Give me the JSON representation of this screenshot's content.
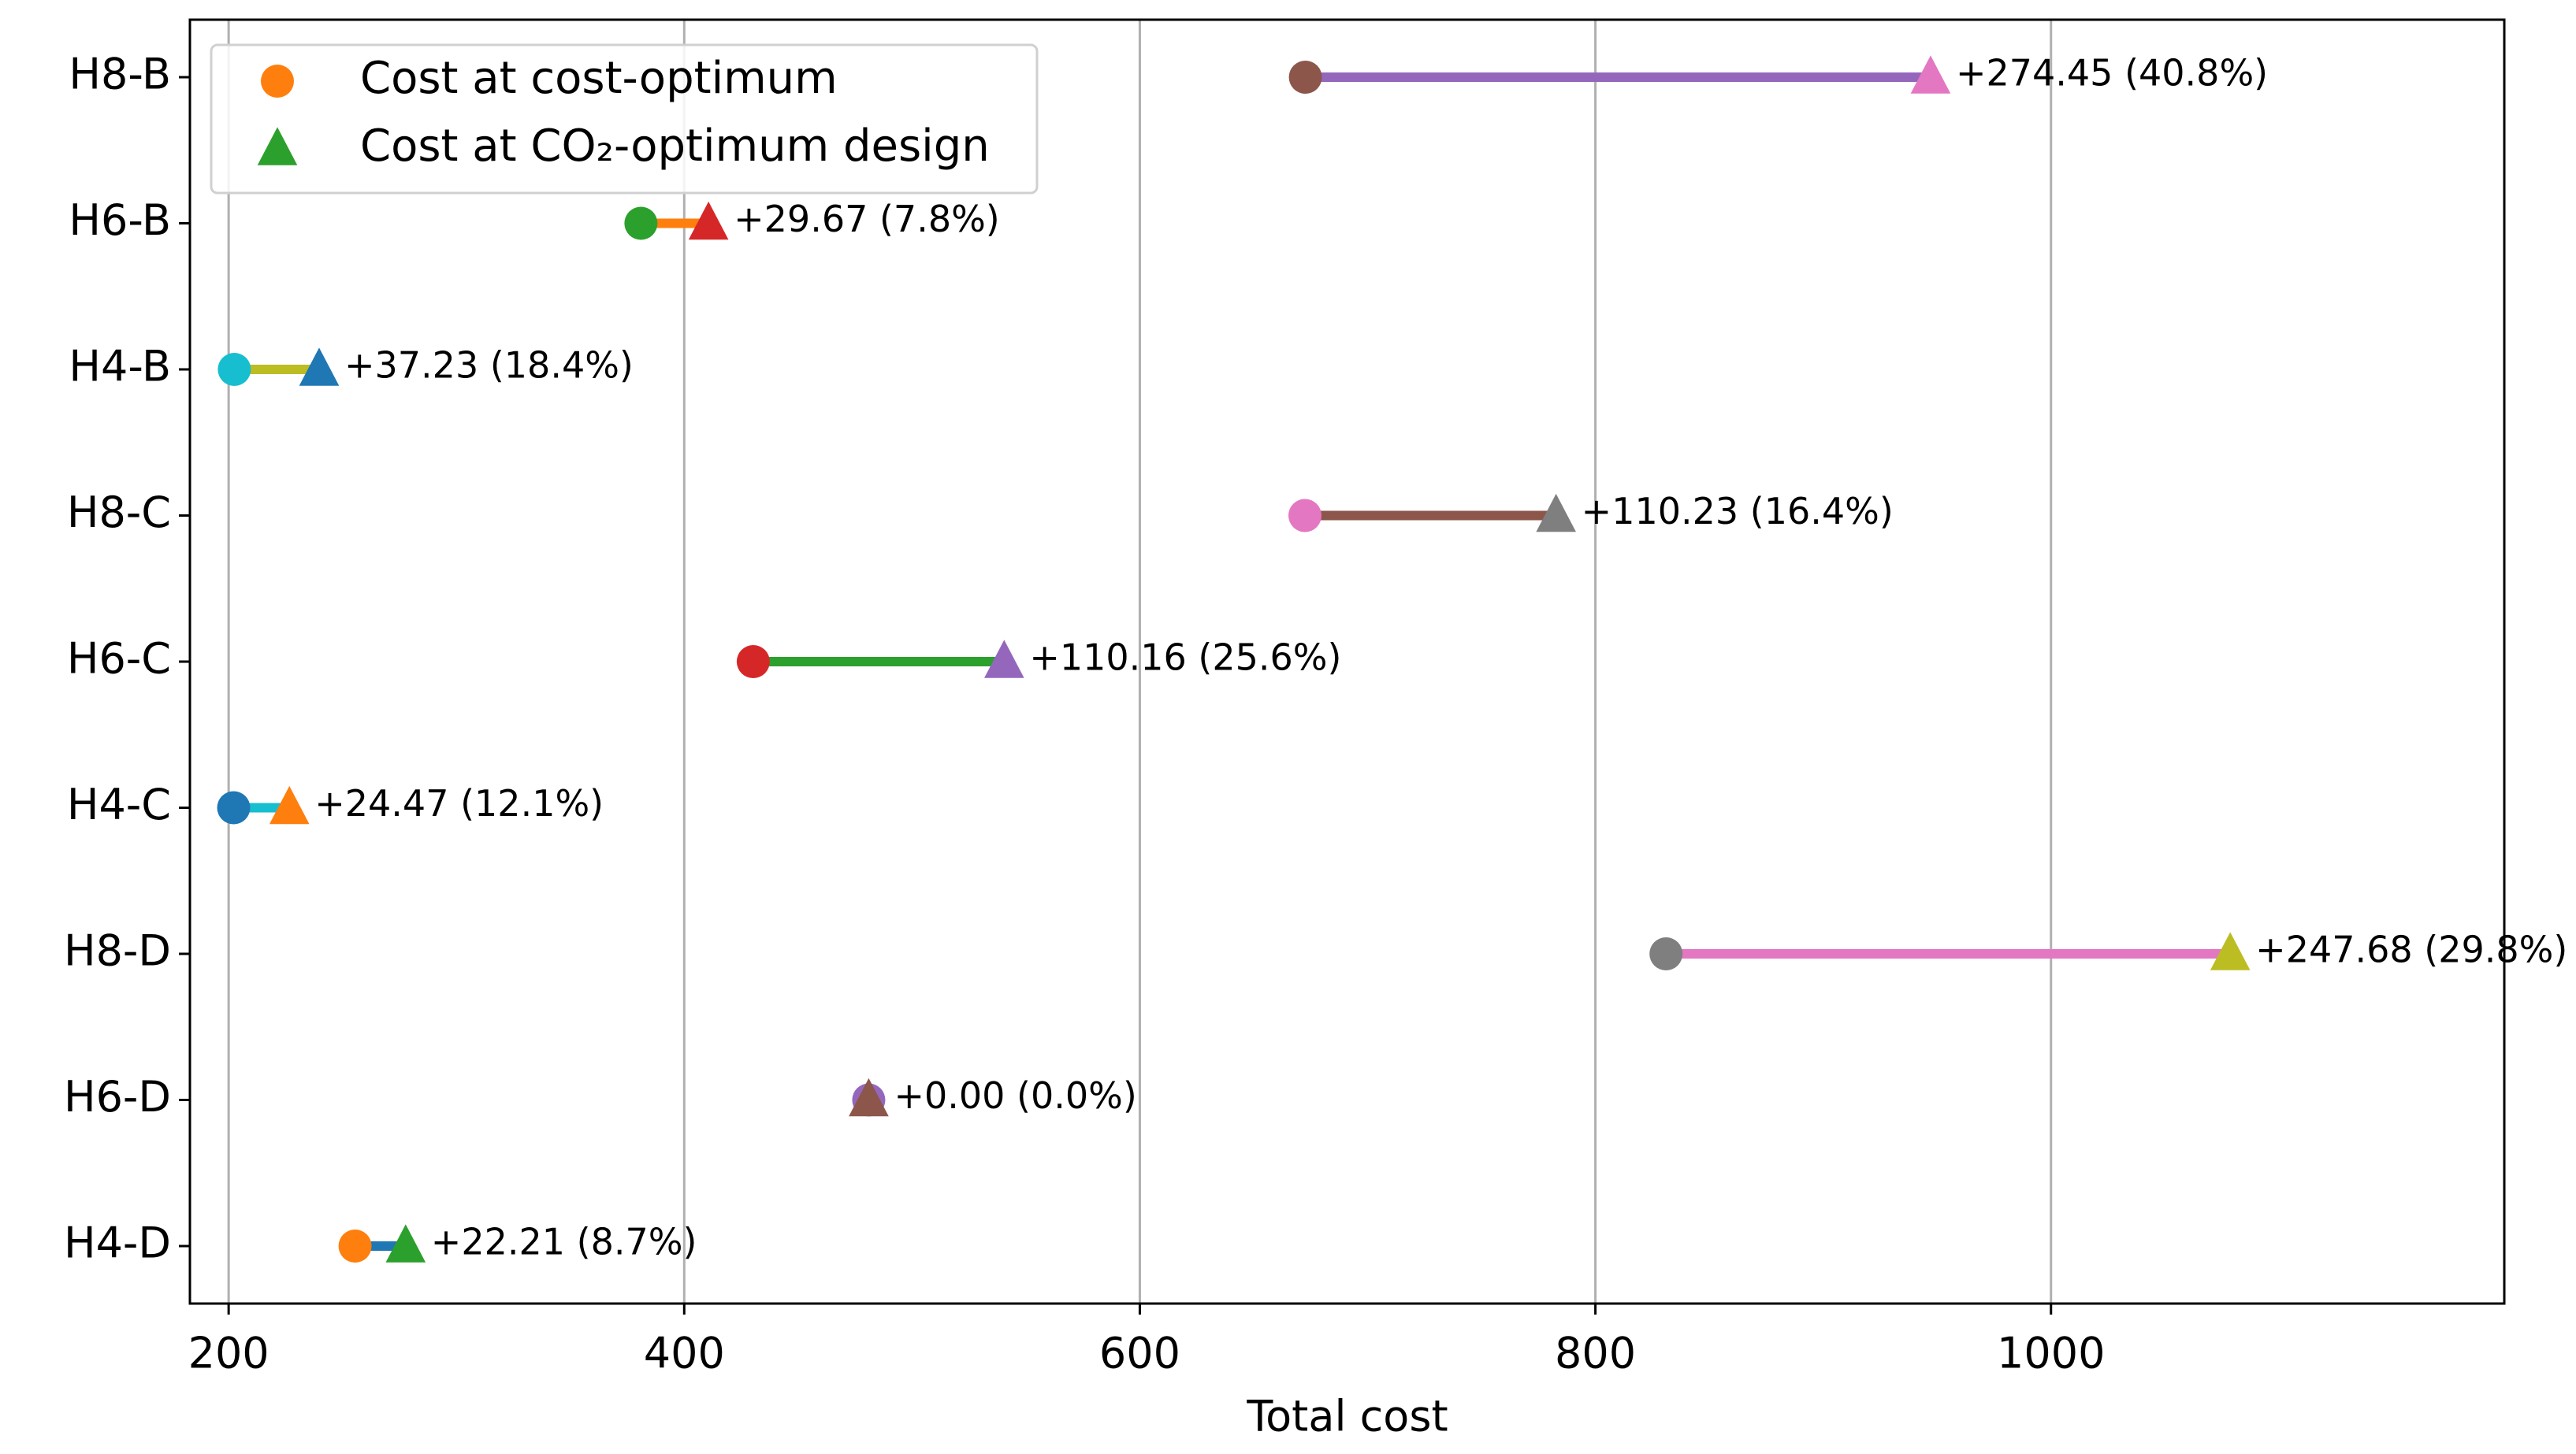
{
  "chart_data": {
    "type": "dumbbell",
    "x_label": "Total cost",
    "categories": [
      "H8-B",
      "H6-B",
      "H4-B",
      "H8-C",
      "H6-C",
      "H4-C",
      "H8-D",
      "H6-D",
      "H4-D"
    ],
    "series": [
      {
        "name": "Cost at cost-optimum",
        "color": "#ff7f0e",
        "marker": "circle",
        "values": [
          672.7,
          381,
          202.5,
          672.5,
          430.3,
          202.2,
          831,
          481,
          255.5
        ],
        "point_colors": [
          "#8c564b",
          "#2ca02c",
          "#17becf",
          "#e377c2",
          "#d62728",
          "#1f77b4",
          "#7f7f7f",
          "#9467bd",
          "#ff7f0e"
        ]
      },
      {
        "name": "Cost at CO₂-optimum design",
        "color": "#2ca02c",
        "marker": "triangle",
        "values": [
          947.15,
          410.67,
          239.73,
          782.73,
          540.46,
          226.67,
          1078.68,
          481,
          277.71
        ],
        "point_colors": [
          "#e377c2",
          "#d62728",
          "#1f77b4",
          "#7f7f7f",
          "#9467bd",
          "#ff7f0e",
          "#bcbd22",
          "#8c564b",
          "#2ca02c"
        ]
      }
    ],
    "line_colors": [
      "#9467bd",
      "#ff7f0e",
      "#bcbd22",
      "#8c564b",
      "#2ca02c",
      "#17becf",
      "#e377c2",
      "#8c564b",
      "#1f77b4"
    ],
    "annotations": [
      "+274.45 (40.8%)",
      "+29.67 (7.8%)",
      "+37.23 (18.4%)",
      "+110.23 (16.4%)",
      "+110.16 (25.6%)",
      "+24.47 (12.1%)",
      "+247.68 (29.8%)",
      "+0.00 (0.0%)",
      "+22.21 (8.7%)"
    ],
    "xlim": [
      183,
      1199
    ],
    "xticks": [
      200,
      400,
      600,
      800,
      1000
    ],
    "grid": true,
    "legend_position": "upper left"
  }
}
